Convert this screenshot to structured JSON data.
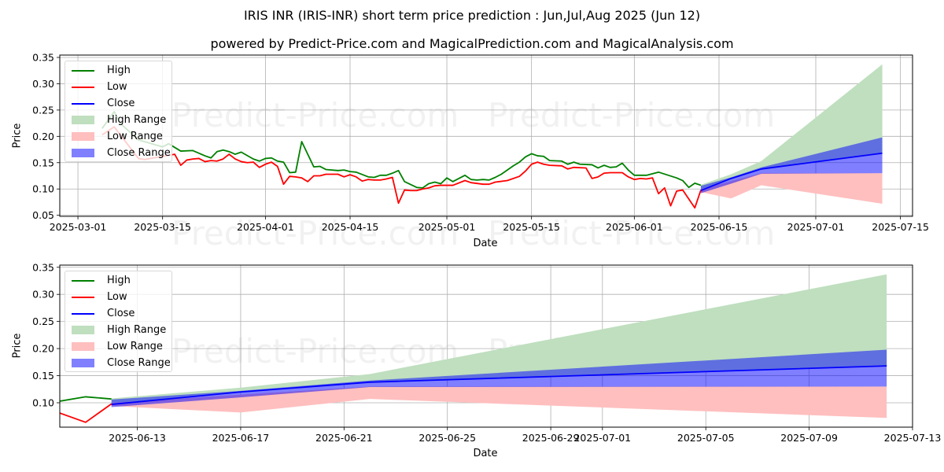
{
  "title": "IRIS INR (IRIS-INR) short term price prediction : Jun,Jul,Aug 2025 (Jun 12)",
  "subtitle": "powered by Predict-Price.com and MagicalPrediction.com and MagicalAnalysis.com",
  "watermark": "Predict-Price.com",
  "colors": {
    "high": "#008000",
    "low": "#ff0000",
    "close": "#0000ff",
    "high_range": "#bfdfbf",
    "low_range": "#ffbfbf",
    "close_range": "rgba(0,0,255,0.5)",
    "grid": "#b0b0b0"
  },
  "legend": [
    "High",
    "Low",
    "Close",
    "High Range",
    "Low Range",
    "Close Range"
  ],
  "chart_data": [
    {
      "type": "line",
      "xlabel": "Date",
      "ylabel": "Price",
      "xlim": [
        "2025-02-26",
        "2025-07-17"
      ],
      "ylim": [
        0.048,
        0.3545
      ],
      "grid": true,
      "legend_position": "top-left",
      "xticks": [
        "2025-03-01",
        "2025-03-15",
        "2025-04-01",
        "2025-04-15",
        "2025-05-01",
        "2025-05-15",
        "2025-06-01",
        "2025-06-15",
        "2025-07-01",
        "2025-07-15"
      ],
      "yticks": [
        "0.05",
        "0.10",
        "0.15",
        "0.20",
        "0.25",
        "0.30",
        "0.35"
      ]
    },
    {
      "type": "line",
      "xlabel": "Date",
      "ylabel": "Price",
      "xlim": [
        "2025-06-10",
        "2025-07-13"
      ],
      "ylim": [
        0.055,
        0.354
      ],
      "grid": true,
      "legend_position": "top-left",
      "xticks": [
        "2025-06-13",
        "2025-06-17",
        "2025-06-21",
        "2025-06-25",
        "2025-06-29",
        "2025-07-01",
        "2025-07-05",
        "2025-07-09",
        "2025-07-13"
      ],
      "yticks": [
        "0.10",
        "0.15",
        "0.20",
        "0.25",
        "0.30",
        "0.35"
      ]
    }
  ],
  "history": {
    "high": [
      [
        "2025-03-05",
        0.215
      ],
      [
        "2025-03-07",
        0.247
      ],
      [
        "2025-03-08",
        0.225
      ],
      [
        "2025-03-11",
        0.193
      ],
      [
        "2025-03-12",
        0.19
      ],
      [
        "2025-03-15",
        0.18
      ],
      [
        "2025-03-16",
        0.186
      ],
      [
        "2025-03-18",
        0.172
      ],
      [
        "2025-03-20",
        0.173
      ],
      [
        "2025-03-22",
        0.163
      ],
      [
        "2025-03-23",
        0.159
      ],
      [
        "2025-03-24",
        0.171
      ],
      [
        "2025-03-25",
        0.174
      ],
      [
        "2025-03-26",
        0.171
      ],
      [
        "2025-03-27",
        0.166
      ],
      [
        "2025-03-28",
        0.17
      ],
      [
        "2025-03-30",
        0.157
      ],
      [
        "2025-03-31",
        0.153
      ],
      [
        "2025-04-01",
        0.158
      ],
      [
        "2025-04-02",
        0.159
      ],
      [
        "2025-04-03",
        0.153
      ],
      [
        "2025-04-04",
        0.151
      ],
      [
        "2025-04-05",
        0.131
      ],
      [
        "2025-04-06",
        0.132
      ],
      [
        "2025-04-07",
        0.19
      ],
      [
        "2025-04-09",
        0.142
      ],
      [
        "2025-04-10",
        0.143
      ],
      [
        "2025-04-11",
        0.137
      ],
      [
        "2025-04-13",
        0.135
      ],
      [
        "2025-04-14",
        0.136
      ],
      [
        "2025-04-15",
        0.133
      ],
      [
        "2025-04-16",
        0.132
      ],
      [
        "2025-04-18",
        0.123
      ],
      [
        "2025-04-19",
        0.122
      ],
      [
        "2025-04-20",
        0.126
      ],
      [
        "2025-04-21",
        0.126
      ],
      [
        "2025-04-22",
        0.13
      ],
      [
        "2025-04-23",
        0.135
      ],
      [
        "2025-04-24",
        0.114
      ],
      [
        "2025-04-26",
        0.103
      ],
      [
        "2025-04-27",
        0.102
      ],
      [
        "2025-04-28",
        0.11
      ],
      [
        "2025-04-29",
        0.113
      ],
      [
        "2025-04-30",
        0.11
      ],
      [
        "2025-05-01",
        0.121
      ],
      [
        "2025-05-02",
        0.114
      ],
      [
        "2025-05-04",
        0.126
      ],
      [
        "2025-05-05",
        0.118
      ],
      [
        "2025-05-06",
        0.117
      ],
      [
        "2025-05-07",
        0.118
      ],
      [
        "2025-05-08",
        0.117
      ],
      [
        "2025-05-09",
        0.122
      ],
      [
        "2025-05-10",
        0.128
      ],
      [
        "2025-05-11",
        0.136
      ],
      [
        "2025-05-12",
        0.144
      ],
      [
        "2025-05-13",
        0.151
      ],
      [
        "2025-05-14",
        0.161
      ],
      [
        "2025-05-15",
        0.167
      ],
      [
        "2025-05-16",
        0.163
      ],
      [
        "2025-05-17",
        0.162
      ],
      [
        "2025-05-18",
        0.154
      ],
      [
        "2025-05-20",
        0.153
      ],
      [
        "2025-05-21",
        0.147
      ],
      [
        "2025-05-22",
        0.151
      ],
      [
        "2025-05-23",
        0.147
      ],
      [
        "2025-05-25",
        0.146
      ],
      [
        "2025-05-26",
        0.14
      ],
      [
        "2025-05-27",
        0.145
      ],
      [
        "2025-05-28",
        0.141
      ],
      [
        "2025-05-29",
        0.142
      ],
      [
        "2025-05-30",
        0.149
      ],
      [
        "2025-05-31",
        0.136
      ],
      [
        "2025-06-01",
        0.126
      ],
      [
        "2025-06-03",
        0.126
      ],
      [
        "2025-06-04",
        0.129
      ],
      [
        "2025-06-05",
        0.132
      ],
      [
        "2025-06-08",
        0.121
      ],
      [
        "2025-06-09",
        0.116
      ],
      [
        "2025-06-10",
        0.103
      ],
      [
        "2025-06-11",
        0.111
      ],
      [
        "2025-06-12",
        0.107
      ]
    ],
    "low": [
      [
        "2025-03-05",
        0.203
      ],
      [
        "2025-03-07",
        0.218
      ],
      [
        "2025-03-11",
        0.158
      ],
      [
        "2025-03-12",
        0.156
      ],
      [
        "2025-03-17",
        0.166
      ],
      [
        "2025-03-18",
        0.145
      ],
      [
        "2025-03-19",
        0.155
      ],
      [
        "2025-03-20",
        0.157
      ],
      [
        "2025-03-21",
        0.158
      ],
      [
        "2025-03-22",
        0.152
      ],
      [
        "2025-03-23",
        0.154
      ],
      [
        "2025-03-24",
        0.153
      ],
      [
        "2025-03-25",
        0.157
      ],
      [
        "2025-03-26",
        0.166
      ],
      [
        "2025-03-27",
        0.157
      ],
      [
        "2025-03-28",
        0.152
      ],
      [
        "2025-03-29",
        0.15
      ],
      [
        "2025-03-30",
        0.151
      ],
      [
        "2025-03-31",
        0.141
      ],
      [
        "2025-04-01",
        0.147
      ],
      [
        "2025-04-02",
        0.151
      ],
      [
        "2025-04-03",
        0.143
      ],
      [
        "2025-04-04",
        0.109
      ],
      [
        "2025-04-05",
        0.124
      ],
      [
        "2025-04-06",
        0.123
      ],
      [
        "2025-04-07",
        0.121
      ],
      [
        "2025-04-08",
        0.114
      ],
      [
        "2025-04-09",
        0.125
      ],
      [
        "2025-04-10",
        0.125
      ],
      [
        "2025-04-11",
        0.128
      ],
      [
        "2025-04-13",
        0.128
      ],
      [
        "2025-04-14",
        0.123
      ],
      [
        "2025-04-15",
        0.127
      ],
      [
        "2025-04-16",
        0.123
      ],
      [
        "2025-04-17",
        0.115
      ],
      [
        "2025-04-18",
        0.118
      ],
      [
        "2025-04-19",
        0.117
      ],
      [
        "2025-04-20",
        0.117
      ],
      [
        "2025-04-21",
        0.119
      ],
      [
        "2025-04-22",
        0.122
      ],
      [
        "2025-04-23",
        0.073
      ],
      [
        "2025-04-24",
        0.098
      ],
      [
        "2025-04-25",
        0.097
      ],
      [
        "2025-04-26",
        0.097
      ],
      [
        "2025-04-27",
        0.1
      ],
      [
        "2025-04-28",
        0.102
      ],
      [
        "2025-04-29",
        0.106
      ],
      [
        "2025-04-30",
        0.107
      ],
      [
        "2025-05-02",
        0.107
      ],
      [
        "2025-05-04",
        0.116
      ],
      [
        "2025-05-05",
        0.112
      ],
      [
        "2025-05-07",
        0.109
      ],
      [
        "2025-05-08",
        0.109
      ],
      [
        "2025-05-09",
        0.113
      ],
      [
        "2025-05-11",
        0.116
      ],
      [
        "2025-05-13",
        0.124
      ],
      [
        "2025-05-14",
        0.134
      ],
      [
        "2025-05-15",
        0.147
      ],
      [
        "2025-05-16",
        0.151
      ],
      [
        "2025-05-17",
        0.147
      ],
      [
        "2025-05-18",
        0.145
      ],
      [
        "2025-05-20",
        0.144
      ],
      [
        "2025-05-21",
        0.138
      ],
      [
        "2025-05-22",
        0.141
      ],
      [
        "2025-05-24",
        0.14
      ],
      [
        "2025-05-25",
        0.12
      ],
      [
        "2025-05-26",
        0.123
      ],
      [
        "2025-05-27",
        0.13
      ],
      [
        "2025-05-28",
        0.131
      ],
      [
        "2025-05-30",
        0.131
      ],
      [
        "2025-05-31",
        0.123
      ],
      [
        "2025-06-01",
        0.118
      ],
      [
        "2025-06-02",
        0.12
      ],
      [
        "2025-06-03",
        0.119
      ],
      [
        "2025-06-04",
        0.121
      ],
      [
        "2025-06-05",
        0.091
      ],
      [
        "2025-06-06",
        0.102
      ],
      [
        "2025-06-07",
        0.068
      ],
      [
        "2025-06-08",
        0.096
      ],
      [
        "2025-06-09",
        0.098
      ],
      [
        "2025-06-11",
        0.064
      ],
      [
        "2025-06-12",
        0.098
      ]
    ]
  },
  "forecast": {
    "dates": [
      "2025-06-12",
      "2025-06-17",
      "2025-06-22",
      "2025-07-12"
    ],
    "close": [
      0.097,
      0.12,
      0.138,
      0.168
    ],
    "close_range_low": [
      0.092,
      0.11,
      0.129,
      0.13
    ],
    "close_range_high": [
      0.106,
      0.122,
      0.141,
      0.198
    ],
    "high_range_low": [
      0.097,
      0.12,
      0.138,
      0.168
    ],
    "high_range_high": [
      0.108,
      0.128,
      0.153,
      0.337
    ],
    "low_range_low": [
      0.094,
      0.082,
      0.107,
      0.072
    ],
    "low_range_high": [
      0.1,
      0.115,
      0.13,
      0.13
    ]
  }
}
